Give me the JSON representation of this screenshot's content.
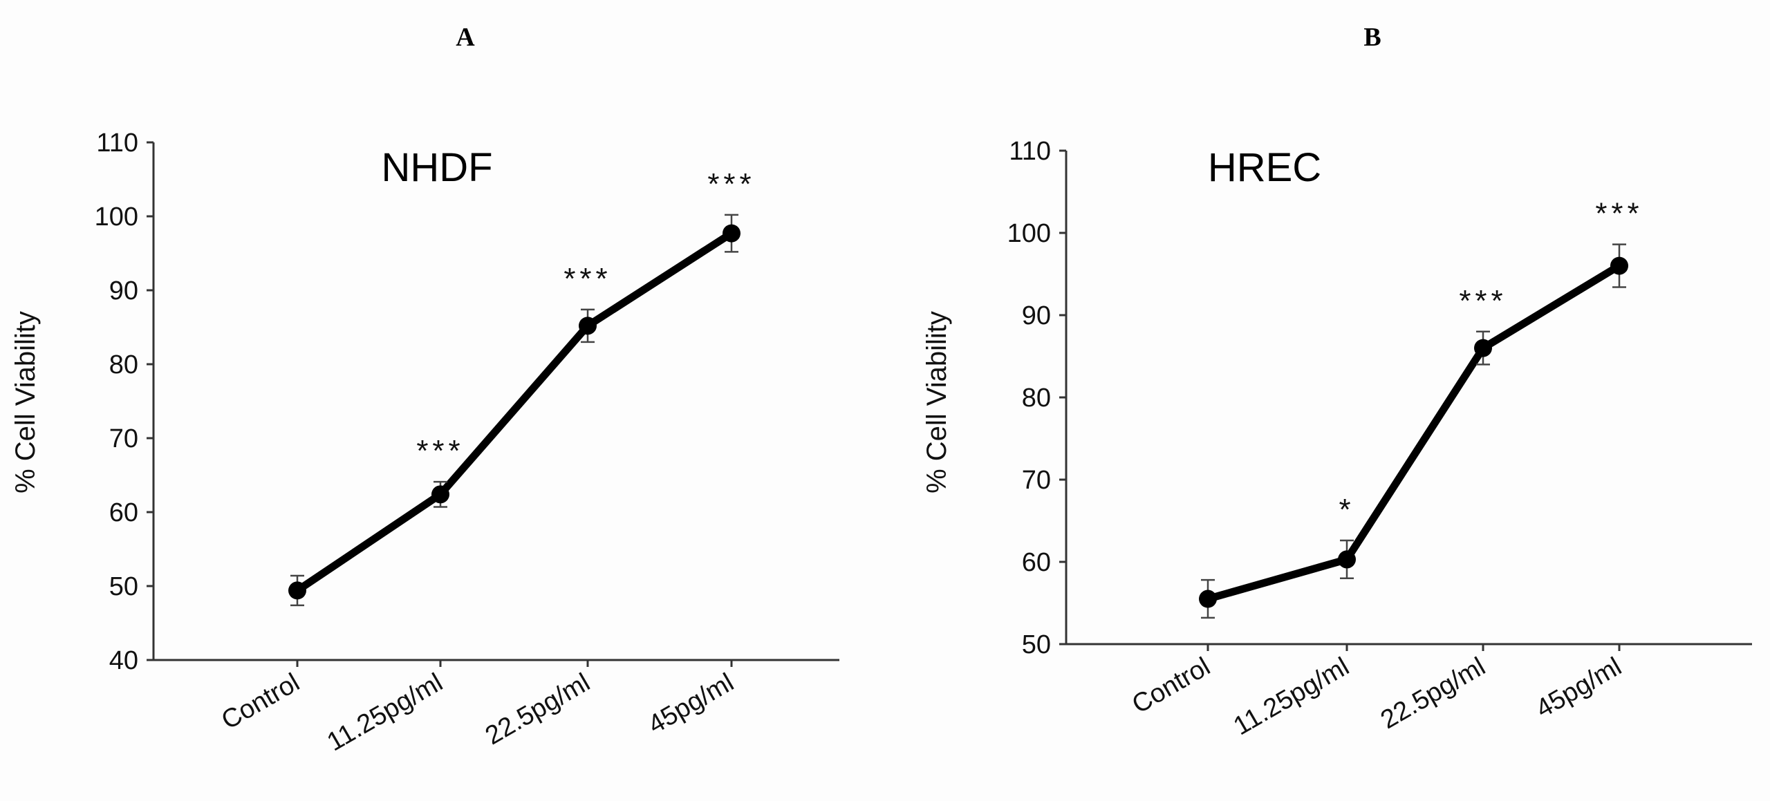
{
  "chart_data": [
    {
      "type": "line",
      "panel_label": "A",
      "title": "NHDF",
      "ylabel": "% Cell Viability",
      "xlabel": "",
      "categories": [
        "Control",
        "11.25pg/ml",
        "22.5pg/ml",
        "45pg/ml"
      ],
      "values": [
        49.4,
        62.4,
        85.2,
        97.7
      ],
      "errors": [
        2.0,
        1.7,
        2.2,
        2.5
      ],
      "significance": [
        "",
        "***",
        "***",
        "***"
      ],
      "ylim": [
        40,
        110
      ],
      "yticks": [
        40,
        50,
        60,
        70,
        80,
        90,
        100,
        110
      ],
      "grid": false,
      "color": "#000000"
    },
    {
      "type": "line",
      "panel_label": "B",
      "title": "HREC",
      "ylabel": "% Cell Viability",
      "xlabel": "",
      "categories": [
        "Control",
        "11.25pg/ml",
        "22.5pg/ml",
        "45pg/ml"
      ],
      "values": [
        55.5,
        60.3,
        86.0,
        96.0
      ],
      "errors": [
        2.3,
        2.3,
        2.0,
        2.6
      ],
      "significance": [
        "",
        "*",
        "***",
        "***"
      ],
      "ylim": [
        50,
        110
      ],
      "yticks": [
        50,
        60,
        70,
        80,
        90,
        100,
        110
      ],
      "grid": false,
      "color": "#000000"
    }
  ]
}
